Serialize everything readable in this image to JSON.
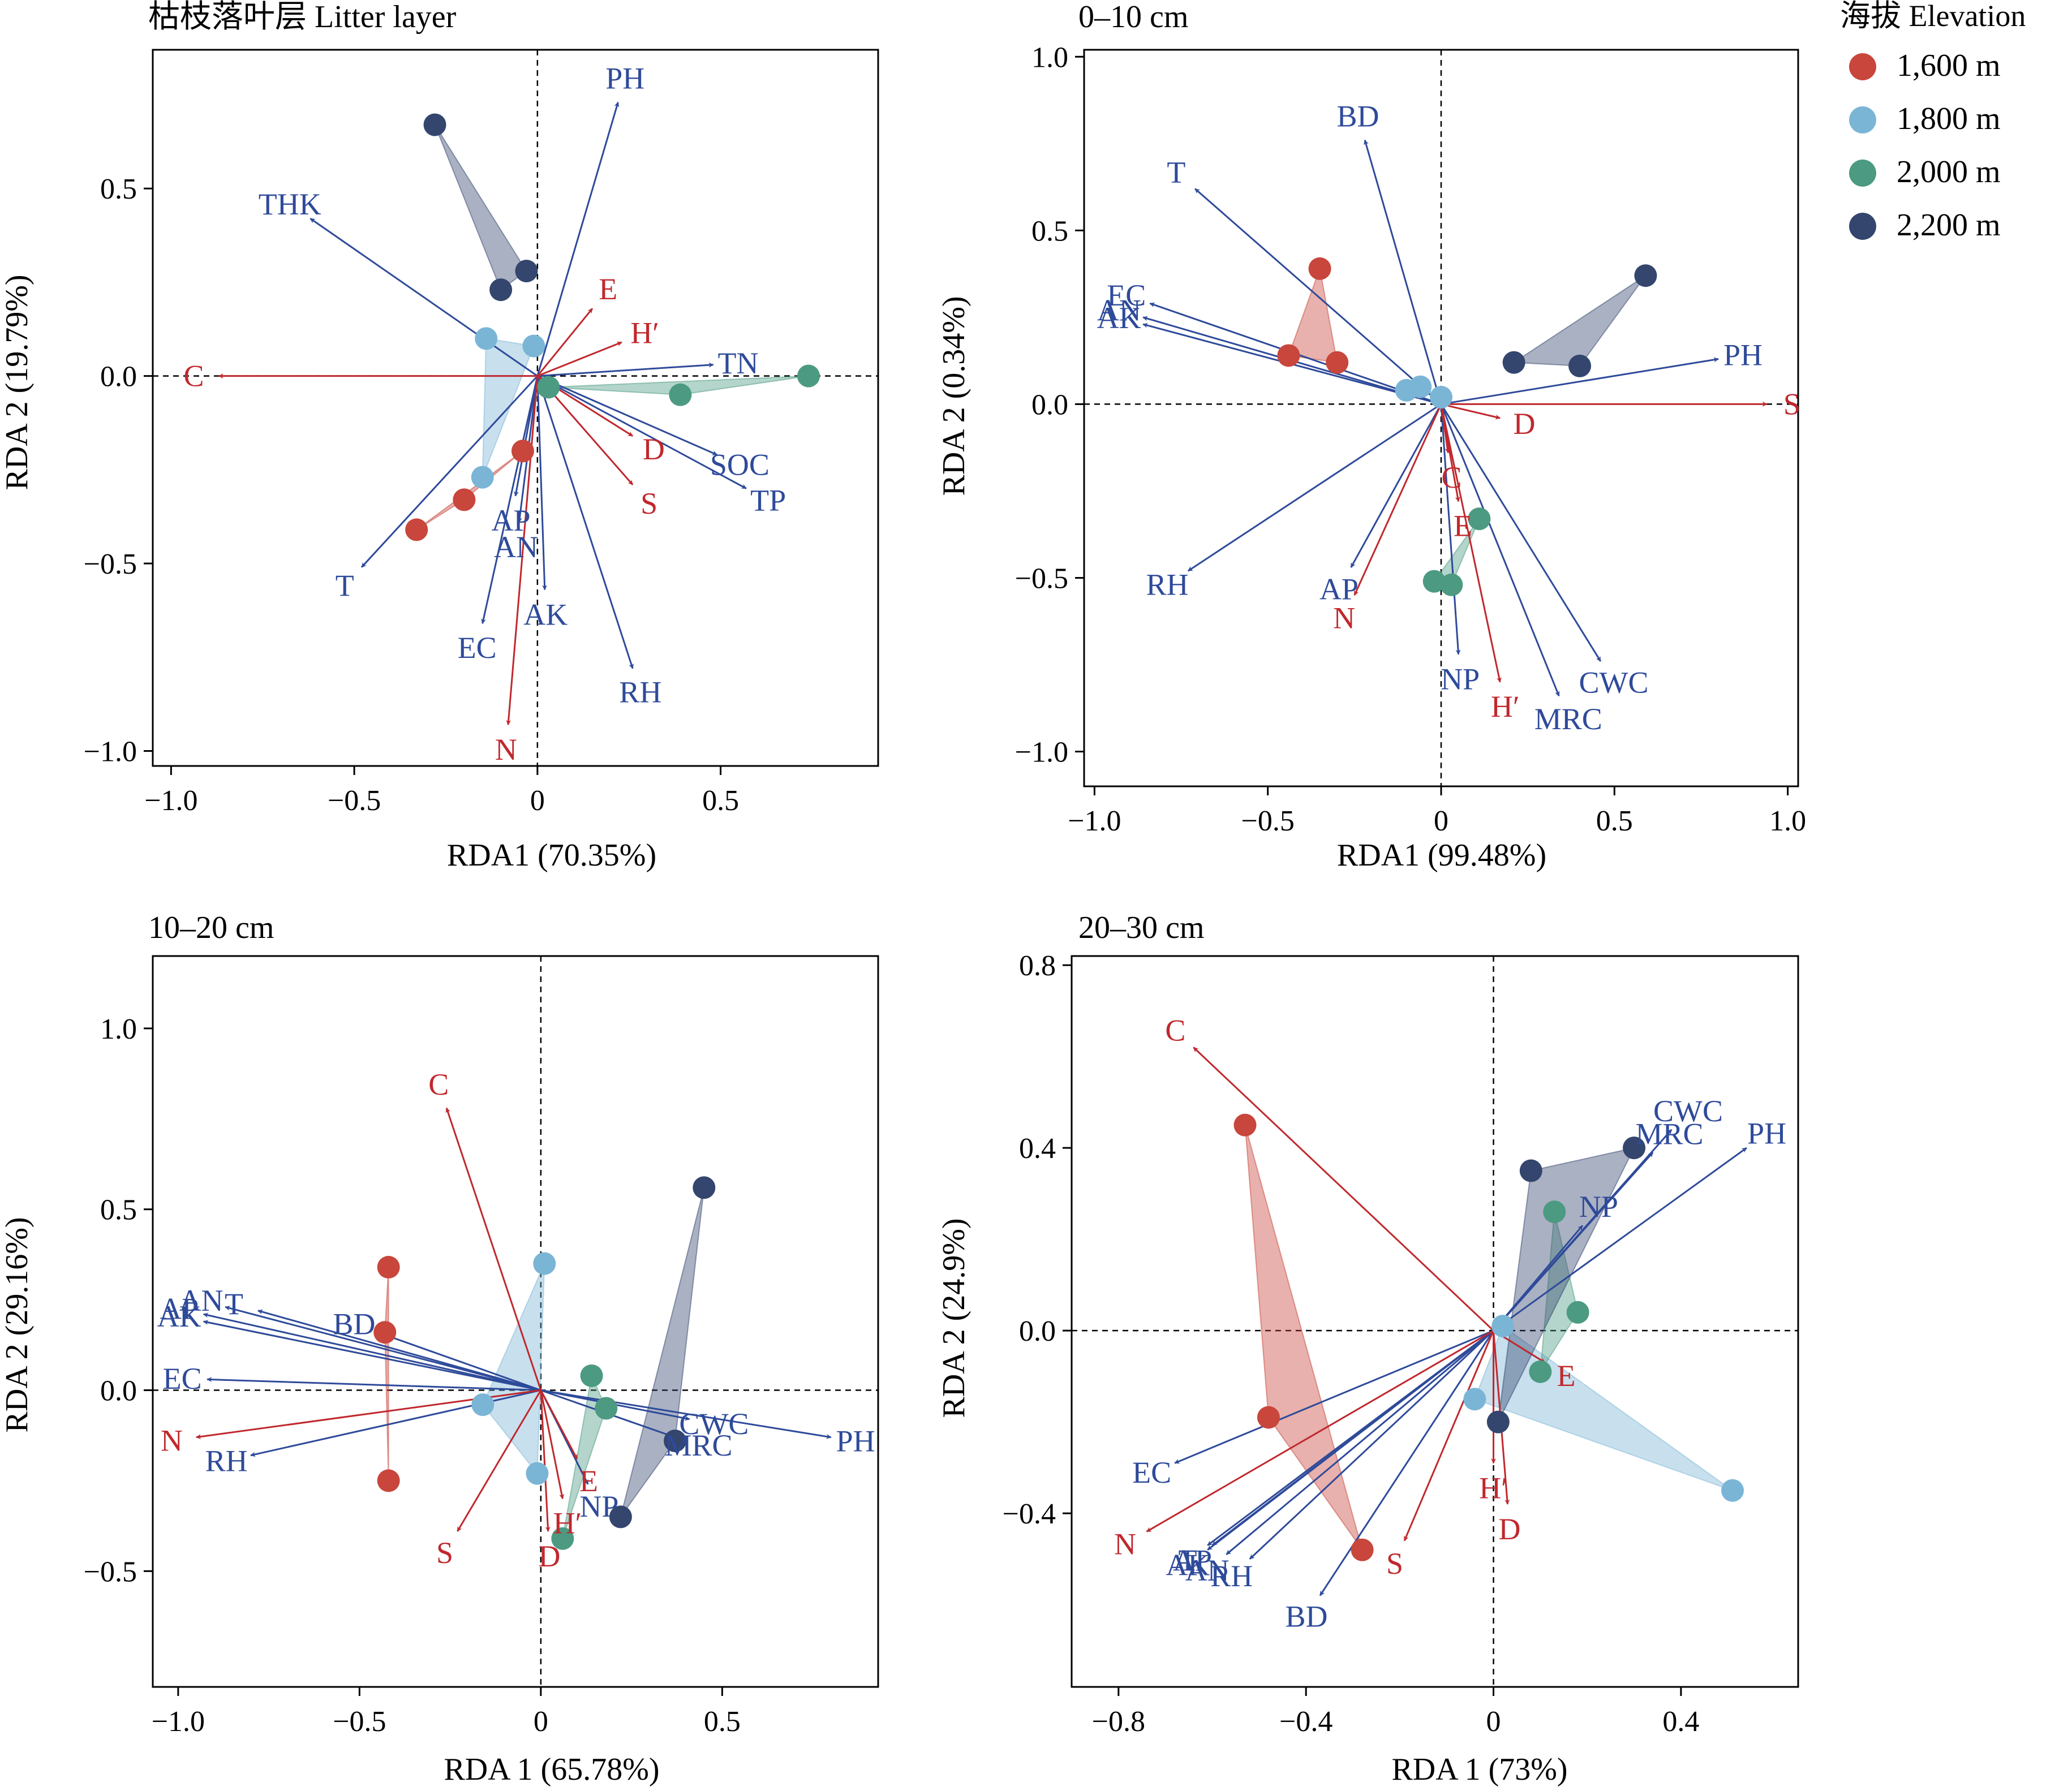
{
  "figure": {
    "legend_title": "海拔 Elevation"
  },
  "colors": {
    "blue": "#2E4A9A",
    "red": "#C0282D",
    "axis": "#000000"
  },
  "legend": [
    {
      "label": "1,600 m",
      "color": "#C8463C"
    },
    {
      "label": "1,800 m",
      "color": "#7BB5D6"
    },
    {
      "label": "2,000 m",
      "color": "#4C9A82"
    },
    {
      "label": "2,200 m",
      "color": "#34466E"
    }
  ],
  "chart_data": [
    {
      "type": "scatter",
      "title": "枯枝落叶层 Litter layer",
      "xlabel": "RDA1 (70.35%)",
      "ylabel": "RDA 2 (19.79%)",
      "xlim": [
        -1.05,
        0.93
      ],
      "ylim": [
        -1.04,
        0.87
      ],
      "xticks": [
        -1.0,
        -0.5,
        0,
        0.5
      ],
      "xtick_labels": [
        "−1.0",
        "−0.5",
        "0",
        "0.5"
      ],
      "yticks": [
        -1.0,
        -0.5,
        0,
        0.5
      ],
      "ytick_labels": [
        "−1.0",
        "−0.5",
        "0.0",
        "0.5"
      ],
      "arrows": [
        {
          "label": "PH",
          "x": 0.22,
          "y": 0.73,
          "type": "env"
        },
        {
          "label": "THK",
          "x": -0.62,
          "y": 0.42,
          "type": "env"
        },
        {
          "label": "TN",
          "x": 0.48,
          "y": 0.03,
          "type": "env"
        },
        {
          "label": "SOC",
          "x": 0.49,
          "y": -0.21,
          "type": "env"
        },
        {
          "label": "TP",
          "x": 0.57,
          "y": -0.3,
          "type": "env"
        },
        {
          "label": "AP",
          "x": -0.06,
          "y": -0.32,
          "type": "env"
        },
        {
          "label": "AN",
          "x": -0.05,
          "y": -0.39,
          "type": "env"
        },
        {
          "label": "T",
          "x": -0.48,
          "y": -0.51,
          "type": "env"
        },
        {
          "label": "EC",
          "x": -0.15,
          "y": -0.66,
          "type": "env"
        },
        {
          "label": "AK",
          "x": 0.02,
          "y": -0.57,
          "type": "env"
        },
        {
          "label": "RH",
          "x": 0.26,
          "y": -0.78,
          "type": "env"
        },
        {
          "label": "C",
          "x": -0.87,
          "y": 0.0,
          "type": "response"
        },
        {
          "label": "E",
          "x": 0.15,
          "y": 0.18,
          "type": "response"
        },
        {
          "label": "H′",
          "x": 0.23,
          "y": 0.09,
          "type": "response"
        },
        {
          "label": "D",
          "x": 0.26,
          "y": -0.16,
          "type": "response"
        },
        {
          "label": "S",
          "x": 0.26,
          "y": -0.29,
          "type": "response"
        },
        {
          "label": "N",
          "x": -0.08,
          "y": -0.93,
          "type": "response"
        }
      ],
      "groups": [
        {
          "elevation": "1,600 m",
          "points": [
            [
              -0.04,
              -0.2
            ],
            [
              -0.2,
              -0.33
            ],
            [
              -0.33,
              -0.41
            ]
          ]
        },
        {
          "elevation": "1,800 m",
          "points": [
            [
              -0.14,
              0.1
            ],
            [
              -0.01,
              0.08
            ],
            [
              -0.15,
              -0.27
            ]
          ]
        },
        {
          "elevation": "2,000 m",
          "points": [
            [
              0.74,
              0.0
            ],
            [
              0.39,
              -0.05
            ],
            [
              0.03,
              -0.03
            ]
          ]
        },
        {
          "elevation": "2,200 m",
          "points": [
            [
              -0.28,
              0.67
            ],
            [
              -0.03,
              0.28
            ],
            [
              -0.1,
              0.23
            ]
          ]
        }
      ]
    },
    {
      "type": "scatter",
      "title": "0–10 cm",
      "xlabel": "RDA1 (99.48%)",
      "ylabel": "RDA 2 (0.34%)",
      "xlim": [
        -1.03,
        1.03
      ],
      "ylim": [
        -1.1,
        1.02
      ],
      "xticks": [
        -1.0,
        -0.5,
        0,
        0.5,
        1.0
      ],
      "xtick_labels": [
        "−1.0",
        "−0.5",
        "0",
        "0.5",
        "1.0"
      ],
      "yticks": [
        -1.0,
        -0.5,
        0,
        0.5,
        1.0
      ],
      "ytick_labels": [
        "−1.0",
        "−0.5",
        "0.0",
        "0.5",
        "1.0"
      ],
      "arrows": [
        {
          "label": "BD",
          "x": -0.22,
          "y": 0.76,
          "type": "env"
        },
        {
          "label": "T",
          "x": -0.71,
          "y": 0.62,
          "type": "env"
        },
        {
          "label": "EC",
          "x": -0.84,
          "y": 0.29,
          "type": "env"
        },
        {
          "label": "AN",
          "x": -0.86,
          "y": 0.25,
          "type": "env"
        },
        {
          "label": "AK",
          "x": -0.86,
          "y": 0.23,
          "type": "env"
        },
        {
          "label": "PH",
          "x": 0.8,
          "y": 0.13,
          "type": "env"
        },
        {
          "label": "RH",
          "x": -0.73,
          "y": -0.48,
          "type": "env"
        },
        {
          "label": "AP",
          "x": -0.26,
          "y": -0.47,
          "type": "env"
        },
        {
          "label": "NP",
          "x": 0.05,
          "y": -0.72,
          "type": "env"
        },
        {
          "label": "MRC",
          "x": 0.34,
          "y": -0.84,
          "type": "env"
        },
        {
          "label": "CWC",
          "x": 0.46,
          "y": -0.74,
          "type": "env"
        },
        {
          "label": "S",
          "x": 0.94,
          "y": 0.0,
          "type": "response"
        },
        {
          "label": "D",
          "x": 0.17,
          "y": -0.04,
          "type": "response"
        },
        {
          "label": "C",
          "x": 0.02,
          "y": -0.14,
          "type": "response"
        },
        {
          "label": "E",
          "x": 0.05,
          "y": -0.28,
          "type": "response"
        },
        {
          "label": "N",
          "x": -0.25,
          "y": -0.55,
          "type": "response"
        },
        {
          "label": "H′",
          "x": 0.17,
          "y": -0.8,
          "type": "response"
        }
      ],
      "groups": [
        {
          "elevation": "1,600 m",
          "points": [
            [
              -0.35,
              0.39
            ],
            [
              -0.44,
              0.14
            ],
            [
              -0.3,
              0.12
            ]
          ]
        },
        {
          "elevation": "1,800 m",
          "points": [
            [
              -0.06,
              0.05
            ],
            [
              -0.1,
              0.04
            ],
            [
              0.0,
              0.02
            ]
          ]
        },
        {
          "elevation": "2,000 m",
          "points": [
            [
              0.11,
              -0.33
            ],
            [
              -0.02,
              -0.51
            ],
            [
              0.03,
              -0.52
            ]
          ]
        },
        {
          "elevation": "2,200 m",
          "points": [
            [
              0.59,
              0.37
            ],
            [
              0.21,
              0.12
            ],
            [
              0.4,
              0.11
            ]
          ]
        }
      ]
    },
    {
      "type": "scatter",
      "title": "10–20 cm",
      "xlabel": "RDA 1 (65.78%)",
      "ylabel": "RDA 2 (29.16%)",
      "xlim": [
        -1.07,
        0.93
      ],
      "ylim": [
        -0.82,
        1.2
      ],
      "xticks": [
        -1.0,
        -0.5,
        0,
        0.5
      ],
      "xtick_labels": [
        "−1.0",
        "−0.5",
        "0",
        "0.5"
      ],
      "yticks": [
        -0.5,
        0,
        0.5,
        1.0
      ],
      "ytick_labels": [
        "−0.5",
        "0.0",
        "0.5",
        "1.0"
      ],
      "arrows": [
        {
          "label": "AN",
          "x": -0.87,
          "y": 0.23,
          "type": "env"
        },
        {
          "label": "T",
          "x": -0.78,
          "y": 0.22,
          "type": "env"
        },
        {
          "label": "AP",
          "x": -0.93,
          "y": 0.21,
          "type": "env"
        },
        {
          "label": "BD",
          "x": -0.45,
          "y": 0.16,
          "type": "env"
        },
        {
          "label": "AK",
          "x": -0.93,
          "y": 0.19,
          "type": "env"
        },
        {
          "label": "EC",
          "x": -0.92,
          "y": 0.03,
          "type": "env"
        },
        {
          "label": "RH",
          "x": -0.8,
          "y": -0.18,
          "type": "env"
        },
        {
          "label": "PH",
          "x": 0.8,
          "y": -0.13,
          "type": "env"
        },
        {
          "label": "CWC",
          "x": 0.41,
          "y": -0.08,
          "type": "env"
        },
        {
          "label": "MRC",
          "x": 0.37,
          "y": -0.13,
          "type": "env"
        },
        {
          "label": "NP",
          "x": 0.13,
          "y": -0.26,
          "type": "env"
        },
        {
          "label": "C",
          "x": -0.26,
          "y": 0.78,
          "type": "response"
        },
        {
          "label": "N",
          "x": -0.95,
          "y": -0.13,
          "type": "response"
        },
        {
          "label": "S",
          "x": -0.23,
          "y": -0.39,
          "type": "response"
        },
        {
          "label": "D",
          "x": 0.02,
          "y": -0.39,
          "type": "response"
        },
        {
          "label": "H′",
          "x": 0.06,
          "y": -0.3,
          "type": "response"
        },
        {
          "label": "E",
          "x": 0.1,
          "y": -0.19,
          "type": "response"
        }
      ],
      "groups": [
        {
          "elevation": "1,600 m",
          "points": [
            [
              -0.42,
              0.34
            ],
            [
              -0.43,
              0.16
            ],
            [
              -0.42,
              -0.25
            ]
          ]
        },
        {
          "elevation": "1,800 m",
          "points": [
            [
              0.01,
              0.35
            ],
            [
              -0.16,
              -0.04
            ],
            [
              -0.01,
              -0.23
            ]
          ]
        },
        {
          "elevation": "2,000 m",
          "points": [
            [
              0.14,
              0.04
            ],
            [
              0.18,
              -0.05
            ],
            [
              0.06,
              -0.41
            ]
          ]
        },
        {
          "elevation": "2,200 m",
          "points": [
            [
              0.45,
              0.56
            ],
            [
              0.37,
              -0.14
            ],
            [
              0.22,
              -0.35
            ]
          ]
        }
      ]
    },
    {
      "type": "scatter",
      "title": "20–30 cm",
      "xlabel": "RDA 1 (73%)",
      "ylabel": "RDA 2 (24.9%)",
      "xlim": [
        -0.9,
        0.65
      ],
      "ylim": [
        -0.78,
        0.82
      ],
      "xticks": [
        -0.8,
        -0.4,
        0,
        0.4
      ],
      "xtick_labels": [
        "−0.8",
        "−0.4",
        "0",
        "0.4"
      ],
      "yticks": [
        -0.4,
        0,
        0.4,
        0.8
      ],
      "ytick_labels": [
        "−0.4",
        "0.0",
        "0.4",
        "0.8"
      ],
      "arrows": [
        {
          "label": "CWC",
          "x": 0.38,
          "y": 0.44,
          "type": "env"
        },
        {
          "label": "MRC",
          "x": 0.34,
          "y": 0.39,
          "type": "env"
        },
        {
          "label": "PH",
          "x": 0.54,
          "y": 0.4,
          "type": "env"
        },
        {
          "label": "NP",
          "x": 0.19,
          "y": 0.23,
          "type": "env"
        },
        {
          "label": "EC",
          "x": -0.68,
          "y": -0.29,
          "type": "env"
        },
        {
          "label": "T",
          "x": -0.61,
          "y": -0.47,
          "type": "env"
        },
        {
          "label": "AK",
          "x": -0.61,
          "y": -0.48,
          "type": "env"
        },
        {
          "label": "RH",
          "x": -0.52,
          "y": -0.5,
          "type": "env"
        },
        {
          "label": "AP",
          "x": -0.6,
          "y": -0.47,
          "type": "env"
        },
        {
          "label": "AN",
          "x": -0.57,
          "y": -0.49,
          "type": "env"
        },
        {
          "label": "BD",
          "x": -0.37,
          "y": -0.58,
          "type": "env"
        },
        {
          "label": "C",
          "x": -0.64,
          "y": 0.62,
          "type": "response"
        },
        {
          "label": "E",
          "x": 0.11,
          "y": -0.07,
          "type": "response"
        },
        {
          "label": "H′",
          "x": 0.0,
          "y": -0.29,
          "type": "response"
        },
        {
          "label": "D",
          "x": 0.03,
          "y": -0.38,
          "type": "response"
        },
        {
          "label": "S",
          "x": -0.19,
          "y": -0.46,
          "type": "response"
        },
        {
          "label": "N",
          "x": -0.74,
          "y": -0.44,
          "type": "response"
        }
      ],
      "groups": [
        {
          "elevation": "1,600 m",
          "points": [
            [
              -0.53,
              0.45
            ],
            [
              -0.48,
              -0.19
            ],
            [
              -0.28,
              -0.48
            ]
          ]
        },
        {
          "elevation": "1,800 m",
          "points": [
            [
              0.02,
              0.01
            ],
            [
              -0.04,
              -0.15
            ],
            [
              0.51,
              -0.35
            ]
          ]
        },
        {
          "elevation": "2,000 m",
          "points": [
            [
              0.13,
              0.26
            ],
            [
              0.18,
              0.04
            ],
            [
              0.1,
              -0.09
            ]
          ]
        },
        {
          "elevation": "2,200 m",
          "points": [
            [
              0.08,
              0.35
            ],
            [
              0.3,
              0.4
            ],
            [
              0.01,
              -0.2
            ]
          ]
        }
      ]
    }
  ]
}
